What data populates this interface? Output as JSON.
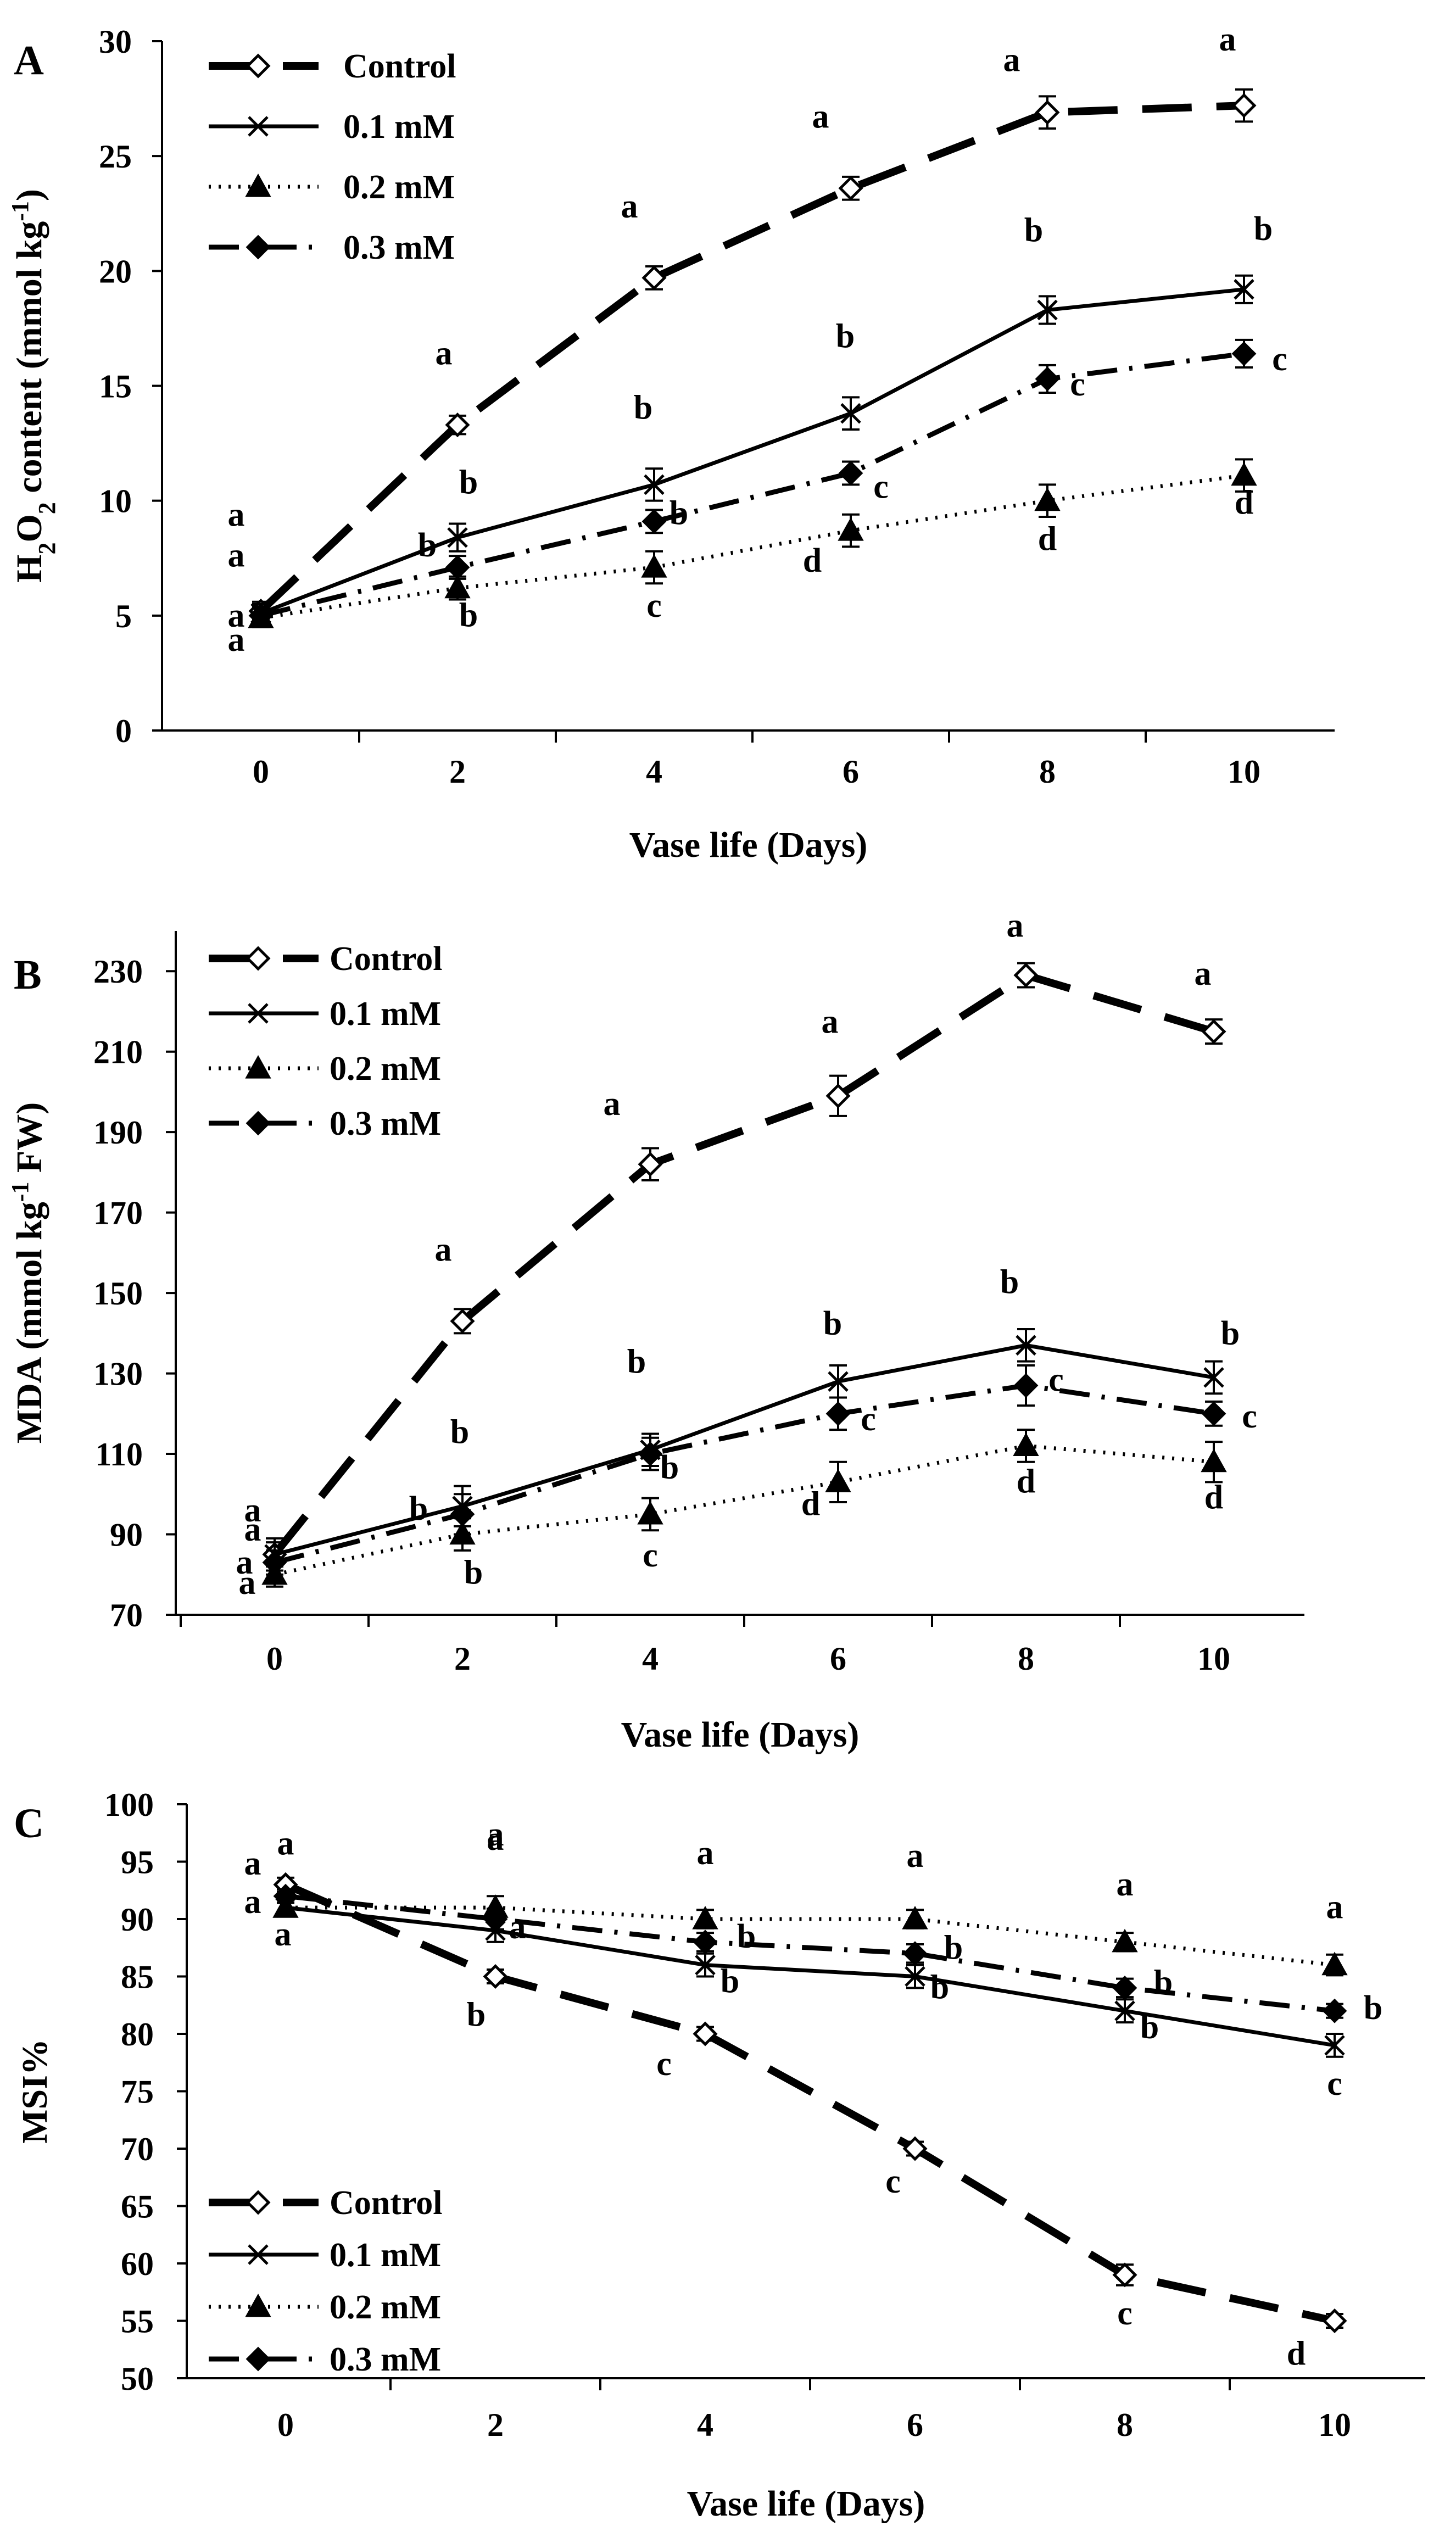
{
  "figure": {
    "panel_letters": [
      "A",
      "B",
      "C"
    ]
  },
  "chart_data": [
    {
      "panel": "A",
      "type": "line",
      "title": "",
      "xlabel": "Vase life (Days)",
      "ylabel": {
        "prefix": "H",
        "sub1": "2",
        "mid": "O",
        "sub2": "2",
        "suffix": "  content (mmol kg",
        "sup": "-1",
        "end": ")"
      },
      "x": [
        0,
        2,
        4,
        6,
        8,
        10
      ],
      "xticks": [
        "0",
        "2",
        "4",
        "6",
        "8",
        "10"
      ],
      "ylim": [
        0,
        30
      ],
      "yticks": [
        "0",
        "5",
        "10",
        "15",
        "20",
        "25",
        "30"
      ],
      "legend_position": "top-left",
      "series": [
        {
          "name": "Control",
          "style": "control",
          "values": [
            5.2,
            13.3,
            19.7,
            23.6,
            26.9,
            27.2
          ],
          "errors": [
            0.4,
            0.4,
            0.5,
            0.5,
            0.7,
            0.7
          ],
          "letters": [
            {
              "t": "a",
              "dx": -45,
              "dy": -155
            },
            {
              "t": "a",
              "dx": -25,
              "dy": -110
            },
            {
              "t": "a",
              "dx": -45,
              "dy": -110
            },
            {
              "t": "a",
              "dx": -55,
              "dy": -110
            },
            {
              "t": "a",
              "dx": -65,
              "dy": -75
            },
            {
              "t": "a",
              "dx": -30,
              "dy": -100
            }
          ]
        },
        {
          "name": "0.1 mM",
          "style": "mm01",
          "values": [
            5.1,
            8.4,
            10.7,
            13.8,
            18.3,
            19.2
          ],
          "errors": [
            0.4,
            0.6,
            0.7,
            0.7,
            0.6,
            0.6
          ],
          "letters": [
            {
              "t": "a",
              "dx": -45,
              "dy": -85
            },
            {
              "t": "b",
              "dx": 20,
              "dy": -80
            },
            {
              "t": "b",
              "dx": -20,
              "dy": -120
            },
            {
              "t": "b",
              "dx": -10,
              "dy": -120
            },
            {
              "t": "b",
              "dx": -25,
              "dy": -125
            },
            {
              "t": "b",
              "dx": 35,
              "dy": -90
            }
          ]
        },
        {
          "name": "0.2 mM",
          "style": "mm02",
          "values": [
            4.9,
            6.2,
            7.1,
            8.7,
            10.0,
            11.1
          ],
          "errors": [
            0.4,
            0.5,
            0.7,
            0.7,
            0.7,
            0.7
          ],
          "letters": [
            {
              "t": "a",
              "dx": -45,
              "dy": 60
            },
            {
              "t": "b",
              "dx": 20,
              "dy": 70
            },
            {
              "t": "c",
              "dx": 0,
              "dy": 90
            },
            {
              "t": "d",
              "dx": -70,
              "dy": 75
            },
            {
              "t": "d",
              "dx": 0,
              "dy": 90
            },
            {
              "t": "d",
              "dx": 0,
              "dy": 70
            }
          ]
        },
        {
          "name": "0.3 mM",
          "style": "mm03",
          "values": [
            5.0,
            7.1,
            9.1,
            11.2,
            15.3,
            16.4
          ],
          "errors": [
            0.4,
            0.5,
            0.5,
            0.5,
            0.6,
            0.6
          ],
          "letters": [
            {
              "t": "a",
              "dx": -45,
              "dy": 20
            },
            {
              "t": "b",
              "dx": -55,
              "dy": -20
            },
            {
              "t": "b",
              "dx": 45,
              "dy": 5
            },
            {
              "t": "c",
              "dx": 55,
              "dy": 45
            },
            {
              "t": "c",
              "dx": 55,
              "dy": 30
            },
            {
              "t": "c",
              "dx": 65,
              "dy": 30
            }
          ]
        }
      ]
    },
    {
      "panel": "B",
      "type": "line",
      "title": "",
      "xlabel": "Vase life (Days)",
      "ylabel": {
        "prefix": "MDA (mmol kg",
        "sup": "-1",
        "end": " FW)"
      },
      "x": [
        0,
        2,
        4,
        6,
        8,
        10
      ],
      "xticks": [
        "0",
        "2",
        "4",
        "6",
        "8",
        "10"
      ],
      "ylim": [
        70,
        240
      ],
      "yticks": [
        "70",
        "90",
        "110",
        "130",
        "150",
        "170",
        "190",
        "210",
        "230"
      ],
      "legend_position": "top-left",
      "series": [
        {
          "name": "Control",
          "style": "control",
          "values": [
            85,
            143,
            182,
            199,
            229,
            215
          ],
          "errors": [
            3,
            3,
            4,
            5,
            3,
            3
          ],
          "letters": [
            {
              "t": "a",
              "dx": -40,
              "dy": -60
            },
            {
              "t": "a",
              "dx": -35,
              "dy": -110
            },
            {
              "t": "a",
              "dx": -70,
              "dy": -90
            },
            {
              "t": "a",
              "dx": -15,
              "dy": -115
            },
            {
              "t": "a",
              "dx": -20,
              "dy": -70
            },
            {
              "t": "a",
              "dx": -20,
              "dy": -85
            }
          ]
        },
        {
          "name": "0.1 mM",
          "style": "mm01",
          "values": [
            85,
            97,
            111,
            128,
            137,
            129
          ],
          "errors": [
            4,
            5,
            4,
            4,
            4,
            4
          ],
          "letters": [
            {
              "t": "a",
              "dx": -40,
              "dy": -25
            },
            {
              "t": "b",
              "dx": -5,
              "dy": -115
            },
            {
              "t": "b",
              "dx": -25,
              "dy": -140
            },
            {
              "t": "b",
              "dx": -10,
              "dy": -85
            },
            {
              "t": "b",
              "dx": -30,
              "dy": -95
            },
            {
              "t": "b",
              "dx": 30,
              "dy": -60
            }
          ]
        },
        {
          "name": "0.2 mM",
          "style": "mm02",
          "values": [
            80,
            90,
            95,
            103,
            112,
            108
          ],
          "errors": [
            3,
            4,
            4,
            5,
            4,
            5
          ],
          "letters": [
            {
              "t": "a",
              "dx": -50,
              "dy": 35
            },
            {
              "t": "b",
              "dx": 20,
              "dy": 90
            },
            {
              "t": "c",
              "dx": 0,
              "dy": 95
            },
            {
              "t": "d",
              "dx": -50,
              "dy": 60
            },
            {
              "t": "d",
              "dx": 0,
              "dy": 85
            },
            {
              "t": "d",
              "dx": 0,
              "dy": 85
            }
          ]
        },
        {
          "name": "0.3 mM",
          "style": "mm03",
          "values": [
            83,
            95,
            110,
            120,
            127,
            120
          ],
          "errors": [
            3,
            5,
            4,
            4,
            5,
            3
          ],
          "letters": [
            {
              "t": "a",
              "dx": -55,
              "dy": 20
            },
            {
              "t": "b",
              "dx": -80,
              "dy": 10
            },
            {
              "t": "b",
              "dx": 35,
              "dy": 45
            },
            {
              "t": "c",
              "dx": 55,
              "dy": 30
            },
            {
              "t": "c",
              "dx": 55,
              "dy": 10
            },
            {
              "t": "c",
              "dx": 65,
              "dy": 25
            }
          ]
        }
      ]
    },
    {
      "panel": "C",
      "type": "line",
      "title": "",
      "xlabel": "Vase life (Days)",
      "ylabel": {
        "prefix": "MSI%"
      },
      "x": [
        0,
        2,
        4,
        6,
        8,
        10
      ],
      "xticks": [
        "0",
        "2",
        "4",
        "6",
        "8",
        "10"
      ],
      "ylim": [
        50,
        100
      ],
      "yticks": [
        "50",
        "55",
        "60",
        "65",
        "70",
        "75",
        "80",
        "85",
        "90",
        "95",
        "100"
      ],
      "legend_position": "bottom-left",
      "series": [
        {
          "name": "Control",
          "style": "control",
          "values": [
            93,
            85,
            80,
            70,
            59,
            55
          ],
          "errors": [
            0.6,
            0.6,
            0.6,
            0.6,
            0.9,
            0.6
          ],
          "letters": [
            {
              "t": "a",
              "dx": 0,
              "dy": -55
            },
            {
              "t": "b",
              "dx": -35,
              "dy": 90
            },
            {
              "t": "c",
              "dx": -75,
              "dy": 75
            },
            {
              "t": "c",
              "dx": -40,
              "dy": 80
            },
            {
              "t": "c",
              "dx": 0,
              "dy": 90
            },
            {
              "t": "d",
              "dx": -70,
              "dy": 80
            }
          ]
        },
        {
          "name": "0.1 mM",
          "style": "mm01",
          "values": [
            91,
            89,
            86,
            85,
            82,
            79
          ],
          "errors": [
            0.6,
            1.0,
            1.0,
            1.0,
            1.0,
            1.0
          ],
          "letters": [
            {
              "t": "a",
              "dx": -60,
              "dy": -60
            },
            {
              "t": "a",
              "dx": 0,
              "dy": -155
            },
            {
              "t": "b",
              "dx": 45,
              "dy": 50
            },
            {
              "t": "b",
              "dx": 45,
              "dy": 40
            },
            {
              "t": "b",
              "dx": 45,
              "dy": 50
            },
            {
              "t": "c",
              "dx": 0,
              "dy": 90
            }
          ]
        },
        {
          "name": "0.2 mM",
          "style": "mm02",
          "values": [
            91,
            91,
            90,
            90,
            88,
            86
          ],
          "errors": [
            0.6,
            1.0,
            0.8,
            0.8,
            0.8,
            0.9
          ],
          "letters": [
            {
              "t": "a",
              "dx": -60,
              "dy": 10
            },
            {
              "t": "a",
              "dx": 0,
              "dy": -105
            },
            {
              "t": "a",
              "dx": 0,
              "dy": -100
            },
            {
              "t": "a",
              "dx": 0,
              "dy": -95
            },
            {
              "t": "a",
              "dx": 0,
              "dy": -85
            },
            {
              "t": "a",
              "dx": 0,
              "dy": -85
            }
          ]
        },
        {
          "name": "0.3 mM",
          "style": "mm03",
          "values": [
            92,
            90,
            88,
            87,
            84,
            82
          ],
          "errors": [
            0.6,
            0.9,
            0.8,
            0.8,
            0.8,
            0.6
          ],
          "letters": [
            {
              "t": "a",
              "dx": -5,
              "dy": 90
            },
            {
              "t": "a",
              "dx": 40,
              "dy": 35
            },
            {
              "t": "b",
              "dx": 75,
              "dy": 10
            },
            {
              "t": "b",
              "dx": 70,
              "dy": 10
            },
            {
              "t": "b",
              "dx": 70,
              "dy": 10
            },
            {
              "t": "b",
              "dx": 70,
              "dy": 15
            }
          ]
        }
      ]
    }
  ]
}
